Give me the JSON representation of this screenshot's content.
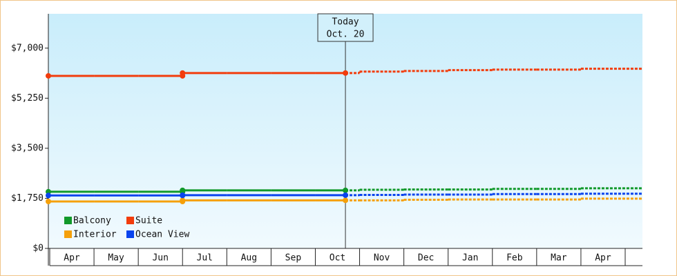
{
  "chart_data": {
    "type": "line",
    "categories": [
      "Apr",
      "May",
      "Jun",
      "Jul",
      "Aug",
      "Sep",
      "Oct",
      "Nov",
      "Dec",
      "Jan",
      "Feb",
      "Mar",
      "Apr"
    ],
    "ylim": [
      0,
      8200
    ],
    "yticks": [
      {
        "value": 0,
        "label": "$0"
      },
      {
        "value": 1750,
        "label": "$1,750"
      },
      {
        "value": 3500,
        "label": "$3,500"
      },
      {
        "value": 5250,
        "label": "$5,250"
      },
      {
        "value": 7000,
        "label": "$7,000"
      }
    ],
    "today": {
      "text": "Today",
      "date": "Oct. 20"
    },
    "series": [
      {
        "name": "Balcony",
        "color": "#11992a",
        "values": [
          1980,
          1980,
          1980,
          2030,
          2030,
          2030,
          2030,
          null,
          null,
          null,
          null,
          null,
          null
        ],
        "forecast": [
          null,
          null,
          null,
          null,
          null,
          null,
          null,
          2050,
          2060,
          2060,
          2080,
          2080,
          2100
        ]
      },
      {
        "name": "Suite",
        "color": "#f23c0c",
        "values": [
          6030,
          6030,
          6030,
          6130,
          6130,
          6130,
          6130,
          null,
          null,
          null,
          null,
          null,
          null
        ],
        "forecast": [
          null,
          null,
          null,
          null,
          null,
          null,
          null,
          6180,
          6200,
          6230,
          6250,
          6250,
          6280
        ]
      },
      {
        "name": "Interior",
        "color": "#f5a00a",
        "values": [
          1640,
          1640,
          1640,
          1680,
          1680,
          1680,
          1680,
          null,
          null,
          null,
          null,
          null,
          null
        ],
        "forecast": [
          null,
          null,
          null,
          null,
          null,
          null,
          null,
          1680,
          1700,
          1710,
          1710,
          1710,
          1740
        ]
      },
      {
        "name": "Ocean View",
        "color": "#0a44ee",
        "values": [
          1850,
          1850,
          1850,
          1860,
          1860,
          1860,
          1860,
          null,
          null,
          null,
          null,
          null,
          null
        ],
        "forecast": [
          null,
          null,
          null,
          null,
          null,
          null,
          null,
          1870,
          1880,
          1880,
          1900,
          1900,
          1910
        ]
      }
    ]
  }
}
